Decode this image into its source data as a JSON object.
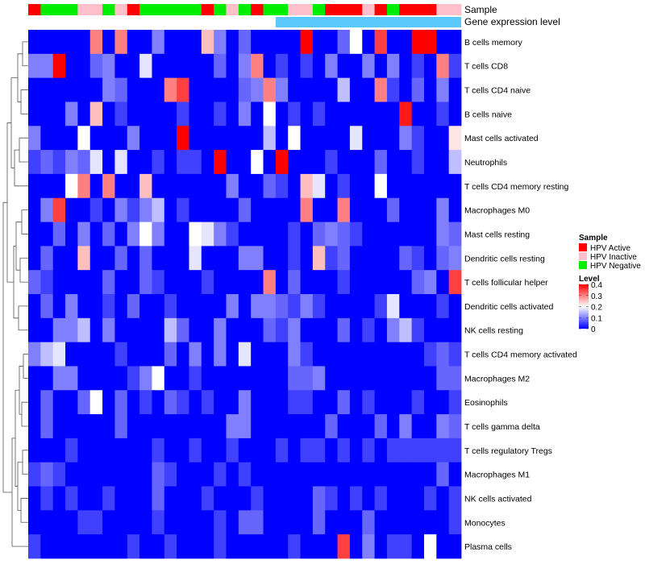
{
  "chart_data": {
    "type": "heatmap",
    "annotation_rows": [
      "Sample",
      "Gene expression level"
    ],
    "rows": [
      "B cells memory",
      "T cells CD8",
      "T cells CD4 naive",
      "B cells naive",
      "Mast cells activated",
      "Neutrophils",
      "T cells CD4 memory resting",
      "Macrophages M0",
      "Mast cells resting",
      "Dendritic cells resting",
      "T cells follicular helper",
      "Dendritic cells activated",
      "NK cells resting",
      "T cells CD4 memory activated",
      "Macrophages M2",
      "Eosinophils",
      "T cells gamma delta",
      "T cells regulatory  Tregs",
      "Macrophages M1",
      "NK cells activated",
      "Monocytes",
      "Plasma cells"
    ],
    "sample_groups": [
      "A",
      "N",
      "N",
      "N",
      "I",
      "I",
      "N",
      "I",
      "A",
      "N",
      "N",
      "N",
      "N",
      "N",
      "A",
      "N",
      "I",
      "N",
      "A",
      "N",
      "N",
      "I",
      "I",
      "N",
      "A",
      "A",
      "A",
      "I",
      "A",
      "N",
      "A",
      "A",
      "A",
      "I",
      "I"
    ],
    "sample_legend": {
      "title": "Sample",
      "entries": [
        {
          "key": "A",
          "label": "HPV Active",
          "color": "#ff0000"
        },
        {
          "key": "I",
          "label": "HPV Inactive",
          "color": "#ffc0cb"
        },
        {
          "key": "N",
          "label": "HPV Negative",
          "color": "#00ee00"
        }
      ]
    },
    "level_legend": {
      "title": "Level",
      "ticks": [
        "0.4",
        "0.3",
        "0.2",
        "0.1",
        "0"
      ],
      "range": [
        0,
        0.4
      ],
      "colors": [
        "#0000ff",
        "#ffffff",
        "#ff0000"
      ]
    },
    "values": [
      [
        0.0,
        0.0,
        0.0,
        0.0,
        0.0,
        0.3,
        0.0,
        0.3,
        0.0,
        0.0,
        0.1,
        0.0,
        0.0,
        0.0,
        0.25,
        0.1,
        0.0,
        0.08,
        0.0,
        0.0,
        0.0,
        0.0,
        0.4,
        0.0,
        0.0,
        0.08,
        0.2,
        0.0,
        0.35,
        0.0,
        0.0,
        0.4,
        0.4,
        0.0,
        0.0
      ],
      [
        0.1,
        0.1,
        0.4,
        0.0,
        0.0,
        0.08,
        0.1,
        0.0,
        0.0,
        0.18,
        0.0,
        0.0,
        0.0,
        0.0,
        0.0,
        0.08,
        0.0,
        0.1,
        0.3,
        0.0,
        0.05,
        0.0,
        0.05,
        0.0,
        0.1,
        0.0,
        0.0,
        0.1,
        0.0,
        0.1,
        0.0,
        0.05,
        0.0,
        0.3,
        0.05
      ],
      [
        0.0,
        0.0,
        0.0,
        0.0,
        0.0,
        0.0,
        0.1,
        0.08,
        0.0,
        0.0,
        0.0,
        0.3,
        0.35,
        0.0,
        0.0,
        0.0,
        0.0,
        0.08,
        0.1,
        0.3,
        0.1,
        0.0,
        0.0,
        0.0,
        0.0,
        0.15,
        0.0,
        0.0,
        0.3,
        0.05,
        0.0,
        0.08,
        0.0,
        0.1,
        0.0
      ],
      [
        0.0,
        0.0,
        0.0,
        0.1,
        0.0,
        0.25,
        0.0,
        0.05,
        0.0,
        0.0,
        0.0,
        0.0,
        0.05,
        0.0,
        0.0,
        0.05,
        0.0,
        0.1,
        0.0,
        0.2,
        0.0,
        0.05,
        0.0,
        0.05,
        0.0,
        0.0,
        0.0,
        0.0,
        0.0,
        0.0,
        0.38,
        0.0,
        0.0,
        0.05,
        0.0
      ],
      [
        0.1,
        0.0,
        0.0,
        0.0,
        0.2,
        0.0,
        0.0,
        0.0,
        0.1,
        0.0,
        0.0,
        0.0,
        0.4,
        0.0,
        0.0,
        0.0,
        0.0,
        0.0,
        0.0,
        0.15,
        0.0,
        0.2,
        0.0,
        0.0,
        0.0,
        0.0,
        0.18,
        0.0,
        0.0,
        0.0,
        0.1,
        0.05,
        0.0,
        0.0,
        0.22
      ],
      [
        0.05,
        0.08,
        0.05,
        0.1,
        0.08,
        0.18,
        0.0,
        0.18,
        0.0,
        0.0,
        0.05,
        0.0,
        0.05,
        0.05,
        0.0,
        0.4,
        0.0,
        0.0,
        0.2,
        0.0,
        0.4,
        0.0,
        0.0,
        0.0,
        0.05,
        0.0,
        0.0,
        0.0,
        0.08,
        0.0,
        0.0,
        0.05,
        0.0,
        0.0,
        0.15
      ],
      [
        0.0,
        0.0,
        0.0,
        0.2,
        0.3,
        0.0,
        0.3,
        0.0,
        0.0,
        0.25,
        0.0,
        0.0,
        0.0,
        0.0,
        0.0,
        0.0,
        0.1,
        0.0,
        0.0,
        0.08,
        0.05,
        0.0,
        0.25,
        0.18,
        0.0,
        0.05,
        0.0,
        0.0,
        0.2,
        0.0,
        0.0,
        0.0,
        0.0,
        0.0,
        0.0
      ],
      [
        0.0,
        0.1,
        0.35,
        0.0,
        0.0,
        0.05,
        0.0,
        0.1,
        0.05,
        0.1,
        0.15,
        0.0,
        0.05,
        0.0,
        0.0,
        0.0,
        0.0,
        0.08,
        0.0,
        0.0,
        0.0,
        0.0,
        0.3,
        0.0,
        0.0,
        0.3,
        0.0,
        0.0,
        0.0,
        0.08,
        0.0,
        0.0,
        0.0,
        0.1,
        0.0
      ],
      [
        0.0,
        0.0,
        0.08,
        0.0,
        0.1,
        0.0,
        0.08,
        0.0,
        0.1,
        0.2,
        0.1,
        0.0,
        0.0,
        0.2,
        0.18,
        0.1,
        0.05,
        0.0,
        0.0,
        0.0,
        0.0,
        0.05,
        0.0,
        0.08,
        0.1,
        0.08,
        0.05,
        0.0,
        0.0,
        0.0,
        0.0,
        0.0,
        0.0,
        0.1,
        0.08
      ],
      [
        0.0,
        0.08,
        0.0,
        0.0,
        0.25,
        0.0,
        0.0,
        0.08,
        0.0,
        0.08,
        0.0,
        0.0,
        0.0,
        0.18,
        0.0,
        0.0,
        0.0,
        0.1,
        0.1,
        0.0,
        0.0,
        0.05,
        0.0,
        0.25,
        0.05,
        0.08,
        0.0,
        0.0,
        0.0,
        0.0,
        0.08,
        0.05,
        0.0,
        0.08,
        0.1
      ],
      [
        0.08,
        0.05,
        0.0,
        0.0,
        0.0,
        0.0,
        0.08,
        0.0,
        0.0,
        0.08,
        0.05,
        0.0,
        0.0,
        0.0,
        0.05,
        0.0,
        0.0,
        0.0,
        0.0,
        0.3,
        0.0,
        0.08,
        0.0,
        0.0,
        0.0,
        0.05,
        0.0,
        0.0,
        0.0,
        0.0,
        0.0,
        0.08,
        0.1,
        0.0,
        0.35
      ],
      [
        0.0,
        0.08,
        0.0,
        0.1,
        0.0,
        0.0,
        0.05,
        0.0,
        0.08,
        0.0,
        0.0,
        0.05,
        0.0,
        0.0,
        0.0,
        0.0,
        0.1,
        0.0,
        0.1,
        0.1,
        0.08,
        0.05,
        0.1,
        0.05,
        0.0,
        0.0,
        0.0,
        0.0,
        0.05,
        0.18,
        0.0,
        0.0,
        0.0,
        0.05,
        0.0
      ],
      [
        0.0,
        0.0,
        0.1,
        0.1,
        0.15,
        0.0,
        0.1,
        0.0,
        0.0,
        0.0,
        0.0,
        0.15,
        0.08,
        0.0,
        0.0,
        0.1,
        0.0,
        0.0,
        0.0,
        0.08,
        0.05,
        0.1,
        0.0,
        0.0,
        0.0,
        0.08,
        0.0,
        0.05,
        0.0,
        0.1,
        0.15,
        0.05,
        0.0,
        0.0,
        0.0
      ],
      [
        0.1,
        0.15,
        0.18,
        0.0,
        0.0,
        0.0,
        0.0,
        0.05,
        0.0,
        0.0,
        0.0,
        0.08,
        0.0,
        0.1,
        0.0,
        0.1,
        0.0,
        0.18,
        0.0,
        0.0,
        0.0,
        0.1,
        0.05,
        0.0,
        0.0,
        0.0,
        0.0,
        0.0,
        0.0,
        0.0,
        0.0,
        0.0,
        0.05,
        0.08,
        0.05
      ],
      [
        0.0,
        0.0,
        0.1,
        0.1,
        0.0,
        0.0,
        0.0,
        0.0,
        0.05,
        0.1,
        0.2,
        0.0,
        0.0,
        0.05,
        0.0,
        0.0,
        0.0,
        0.0,
        0.0,
        0.0,
        0.0,
        0.08,
        0.08,
        0.1,
        0.0,
        0.0,
        0.0,
        0.0,
        0.0,
        0.0,
        0.0,
        0.0,
        0.0,
        0.08,
        0.08
      ],
      [
        0.0,
        0.08,
        0.0,
        0.0,
        0.08,
        0.2,
        0.0,
        0.08,
        0.0,
        0.05,
        0.0,
        0.08,
        0.05,
        0.0,
        0.05,
        0.0,
        0.0,
        0.1,
        0.0,
        0.0,
        0.0,
        0.05,
        0.05,
        0.0,
        0.0,
        0.08,
        0.0,
        0.05,
        0.0,
        0.0,
        0.0,
        0.05,
        0.0,
        0.0,
        0.05
      ],
      [
        0.0,
        0.08,
        0.0,
        0.0,
        0.0,
        0.0,
        0.0,
        0.08,
        0.0,
        0.0,
        0.0,
        0.0,
        0.0,
        0.0,
        0.0,
        0.0,
        0.1,
        0.1,
        0.0,
        0.0,
        0.0,
        0.0,
        0.0,
        0.0,
        0.08,
        0.0,
        0.0,
        0.0,
        0.08,
        0.0,
        0.1,
        0.0,
        0.0,
        0.1,
        0.08
      ],
      [
        0.0,
        0.0,
        0.0,
        0.05,
        0.0,
        0.0,
        0.0,
        0.0,
        0.0,
        0.0,
        0.05,
        0.0,
        0.0,
        0.05,
        0.0,
        0.0,
        0.05,
        0.0,
        0.0,
        0.0,
        0.05,
        0.0,
        0.05,
        0.05,
        0.0,
        0.05,
        0.0,
        0.05,
        0.0,
        0.05,
        0.05,
        0.05,
        0.05,
        0.05,
        0.05
      ],
      [
        0.05,
        0.08,
        0.05,
        0.0,
        0.0,
        0.0,
        0.0,
        0.0,
        0.0,
        0.0,
        0.08,
        0.05,
        0.0,
        0.0,
        0.0,
        0.05,
        0.0,
        0.05,
        0.0,
        0.0,
        0.0,
        0.0,
        0.0,
        0.0,
        0.0,
        0.0,
        0.0,
        0.0,
        0.0,
        0.0,
        0.0,
        0.0,
        0.0,
        0.08,
        0.0
      ],
      [
        0.0,
        0.05,
        0.0,
        0.05,
        0.0,
        0.0,
        0.05,
        0.0,
        0.0,
        0.0,
        0.08,
        0.0,
        0.0,
        0.0,
        0.05,
        0.0,
        0.0,
        0.0,
        0.05,
        0.0,
        0.0,
        0.0,
        0.0,
        0.08,
        0.05,
        0.0,
        0.05,
        0.0,
        0.05,
        0.0,
        0.0,
        0.0,
        0.05,
        0.0,
        0.05
      ],
      [
        0.0,
        0.0,
        0.0,
        0.0,
        0.05,
        0.05,
        0.0,
        0.0,
        0.0,
        0.0,
        0.05,
        0.0,
        0.0,
        0.0,
        0.0,
        0.05,
        0.0,
        0.08,
        0.08,
        0.0,
        0.0,
        0.0,
        0.0,
        0.08,
        0.0,
        0.0,
        0.0,
        0.08,
        0.0,
        0.0,
        0.0,
        0.0,
        0.0,
        0.0,
        0.05
      ],
      [
        0.05,
        0.0,
        0.0,
        0.0,
        0.0,
        0.0,
        0.0,
        0.0,
        0.05,
        0.0,
        0.0,
        0.05,
        0.0,
        0.0,
        0.0,
        0.05,
        0.0,
        0.0,
        0.0,
        0.0,
        0.0,
        0.05,
        0.0,
        0.0,
        0.0,
        0.35,
        0.0,
        0.1,
        0.0,
        0.05,
        0.05,
        0.0,
        0.2,
        0.0,
        0.0
      ]
    ]
  }
}
